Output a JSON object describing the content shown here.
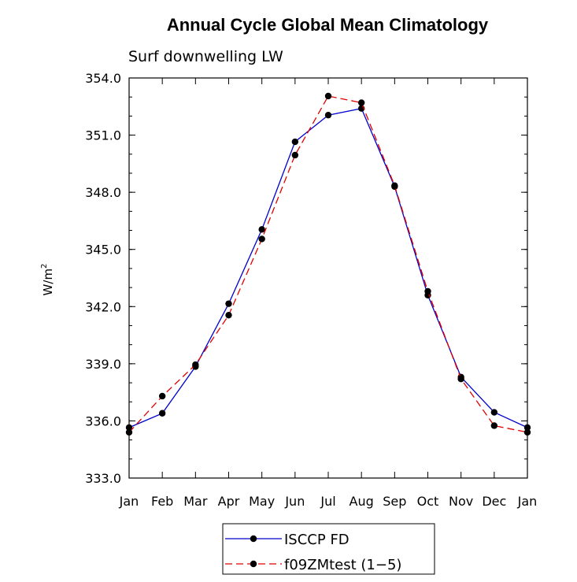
{
  "chart_data": {
    "type": "line",
    "title": "Annual Cycle Global Mean Climatology",
    "subtitle": "Surf downwelling LW",
    "xlabel": "",
    "ylabel": "W/m",
    "ylabel_superscript": "2",
    "categories": [
      "Jan",
      "Feb",
      "Mar",
      "Apr",
      "May",
      "Jun",
      "Jul",
      "Aug",
      "Sep",
      "Oct",
      "Nov",
      "Dec",
      "Jan"
    ],
    "ylim": [
      333.0,
      354.0
    ],
    "yticks": [
      333.0,
      336.0,
      339.0,
      342.0,
      345.0,
      348.0,
      351.0,
      354.0
    ],
    "ytick_labels": [
      "333.0",
      "336.0",
      "339.0",
      "342.0",
      "345.0",
      "348.0",
      "351.0",
      "354.0"
    ],
    "series": [
      {
        "name": "ISCCP FD",
        "color": "#0000cc",
        "dash": "solid",
        "values": [
          335.65,
          336.4,
          338.85,
          342.15,
          346.05,
          350.65,
          352.05,
          352.4,
          348.3,
          342.6,
          338.3,
          336.45,
          335.65
        ]
      },
      {
        "name": "f09ZMtest (1-5)",
        "color": "#e00000",
        "dash": "dashed",
        "values": [
          335.4,
          337.3,
          338.95,
          341.55,
          345.55,
          349.95,
          353.05,
          352.7,
          348.35,
          342.8,
          338.2,
          335.75,
          335.4
        ]
      }
    ],
    "legend": {
      "position": "bottom-center",
      "entries": [
        "ISCCP FD",
        "f09ZMtest (1−5)"
      ]
    },
    "grid": false
  }
}
